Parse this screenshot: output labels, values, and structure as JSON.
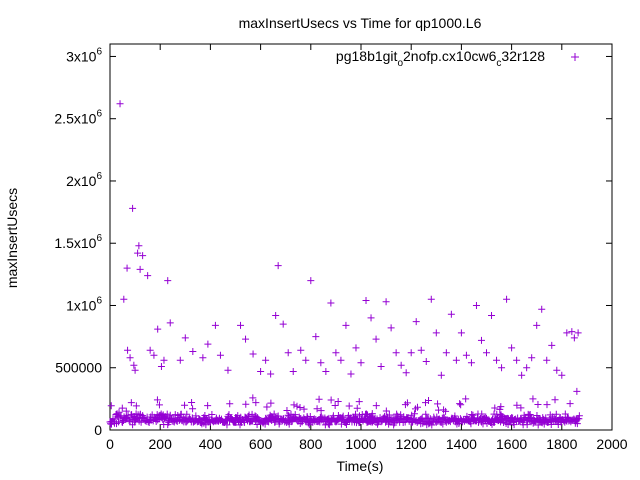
{
  "chart_data": {
    "type": "scatter",
    "title": "maxInsertUsecs vs Time for qp1000.L6",
    "xlabel": "Time(s)",
    "ylabel": "maxInsertUsecs",
    "xlim": [
      0,
      2000
    ],
    "ylim": [
      0,
      3100000
    ],
    "grid": false,
    "legend_position": "top-right",
    "marker": "plus",
    "color": "#9400d3",
    "x_ticks": [
      {
        "value": 0,
        "label": "0"
      },
      {
        "value": 200,
        "label": "200"
      },
      {
        "value": 400,
        "label": "400"
      },
      {
        "value": 600,
        "label": "600"
      },
      {
        "value": 800,
        "label": "800"
      },
      {
        "value": 1000,
        "label": "1000"
      },
      {
        "value": 1200,
        "label": "1200"
      },
      {
        "value": 1400,
        "label": "1400"
      },
      {
        "value": 1600,
        "label": "1600"
      },
      {
        "value": 1800,
        "label": "1800"
      },
      {
        "value": 2000,
        "label": "2000"
      }
    ],
    "y_ticks": [
      {
        "value": 0,
        "base": "0",
        "exp": ""
      },
      {
        "value": 500000,
        "base": "500000",
        "exp": ""
      },
      {
        "value": 1000000,
        "base": "1x10",
        "exp": "6"
      },
      {
        "value": 1500000,
        "base": "1.5x10",
        "exp": "6"
      },
      {
        "value": 2000000,
        "base": "2x10",
        "exp": "6"
      },
      {
        "value": 2500000,
        "base": "2.5x10",
        "exp": "6"
      },
      {
        "value": 3000000,
        "base": "3x10",
        "exp": "6"
      }
    ],
    "series": [
      {
        "name_parts": [
          {
            "text": "pg18b1git",
            "sub": false
          },
          {
            "text": "o",
            "sub": true
          },
          {
            "text": "2nofp.cx10cw6",
            "sub": false
          },
          {
            "text": "c",
            "sub": true
          },
          {
            "text": "32r128",
            "sub": false
          }
        ],
        "outliers": [
          [
            40,
            2620000
          ],
          [
            55,
            1050000
          ],
          [
            68,
            1300000
          ],
          [
            70,
            640000
          ],
          [
            80,
            580000
          ],
          [
            90,
            1780000
          ],
          [
            95,
            520000
          ],
          [
            100,
            480000
          ],
          [
            110,
            1420000
          ],
          [
            115,
            1480000
          ],
          [
            120,
            1290000
          ],
          [
            130,
            1400000
          ],
          [
            150,
            1240000
          ],
          [
            160,
            640000
          ],
          [
            175,
            600000
          ],
          [
            190,
            810000
          ],
          [
            205,
            510000
          ],
          [
            215,
            560000
          ],
          [
            230,
            1200000
          ],
          [
            240,
            860000
          ],
          [
            280,
            560000
          ],
          [
            300,
            740000
          ],
          [
            330,
            630000
          ],
          [
            370,
            580000
          ],
          [
            390,
            690000
          ],
          [
            420,
            840000
          ],
          [
            440,
            600000
          ],
          [
            470,
            480000
          ],
          [
            520,
            840000
          ],
          [
            540,
            730000
          ],
          [
            570,
            610000
          ],
          [
            600,
            470000
          ],
          [
            620,
            560000
          ],
          [
            640,
            450000
          ],
          [
            660,
            920000
          ],
          [
            670,
            1320000
          ],
          [
            690,
            850000
          ],
          [
            710,
            620000
          ],
          [
            730,
            470000
          ],
          [
            760,
            640000
          ],
          [
            780,
            560000
          ],
          [
            800,
            1200000
          ],
          [
            820,
            750000
          ],
          [
            840,
            540000
          ],
          [
            860,
            470000
          ],
          [
            880,
            1020000
          ],
          [
            900,
            620000
          ],
          [
            920,
            560000
          ],
          [
            940,
            840000
          ],
          [
            960,
            450000
          ],
          [
            980,
            660000
          ],
          [
            1000,
            540000
          ],
          [
            1020,
            1040000
          ],
          [
            1040,
            900000
          ],
          [
            1060,
            730000
          ],
          [
            1080,
            510000
          ],
          [
            1100,
            1030000
          ],
          [
            1120,
            820000
          ],
          [
            1140,
            620000
          ],
          [
            1160,
            520000
          ],
          [
            1180,
            460000
          ],
          [
            1200,
            620000
          ],
          [
            1220,
            870000
          ],
          [
            1240,
            640000
          ],
          [
            1260,
            550000
          ],
          [
            1280,
            1050000
          ],
          [
            1300,
            780000
          ],
          [
            1320,
            440000
          ],
          [
            1340,
            620000
          ],
          [
            1360,
            930000
          ],
          [
            1380,
            560000
          ],
          [
            1400,
            780000
          ],
          [
            1420,
            600000
          ],
          [
            1440,
            540000
          ],
          [
            1460,
            1000000
          ],
          [
            1480,
            720000
          ],
          [
            1500,
            620000
          ],
          [
            1520,
            920000
          ],
          [
            1540,
            560000
          ],
          [
            1560,
            500000
          ],
          [
            1580,
            1050000
          ],
          [
            1600,
            660000
          ],
          [
            1620,
            560000
          ],
          [
            1640,
            440000
          ],
          [
            1660,
            500000
          ],
          [
            1680,
            580000
          ],
          [
            1700,
            840000
          ],
          [
            1720,
            970000
          ],
          [
            1740,
            560000
          ],
          [
            1760,
            680000
          ],
          [
            1780,
            480000
          ],
          [
            1800,
            440000
          ],
          [
            1820,
            780000
          ],
          [
            1840,
            790000
          ],
          [
            1850,
            740000
          ],
          [
            1860,
            310000
          ],
          [
            1865,
            780000
          ]
        ]
      }
    ]
  }
}
